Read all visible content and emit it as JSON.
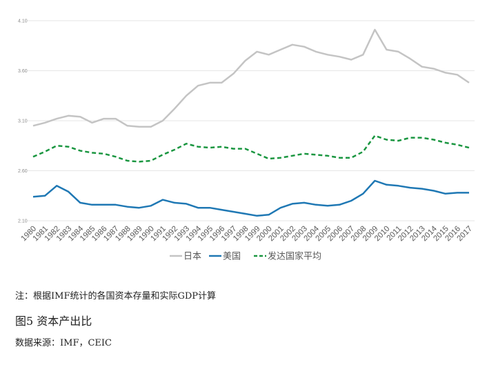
{
  "chart_data": {
    "type": "line",
    "title": "",
    "xlabel": "",
    "ylabel": "",
    "ylim": [
      2.1,
      4.1
    ],
    "y_ticks": [
      "2.10",
      "2.60",
      "3.10",
      "3.60",
      "4.10"
    ],
    "grid": "horizontal",
    "legend_position": "bottom",
    "x": [
      "1980",
      "1981",
      "1982",
      "1983",
      "1984",
      "1985",
      "1986",
      "1987",
      "1988",
      "1989",
      "1990",
      "1991",
      "1992",
      "1993",
      "1994",
      "1995",
      "1996",
      "1997",
      "1998",
      "1999",
      "2000",
      "2001",
      "2002",
      "2003",
      "2004",
      "2005",
      "2006",
      "2007",
      "2008",
      "2009",
      "2010",
      "2011",
      "2012",
      "2013",
      "2014",
      "2015",
      "2016",
      "2017"
    ],
    "series": [
      {
        "name": "日本",
        "color": "#c4c4c4",
        "dash": "solid",
        "values": [
          3.05,
          3.08,
          3.12,
          3.15,
          3.14,
          3.08,
          3.12,
          3.12,
          3.05,
          3.04,
          3.04,
          3.1,
          3.22,
          3.35,
          3.45,
          3.48,
          3.48,
          3.57,
          3.7,
          3.79,
          3.76,
          3.81,
          3.86,
          3.84,
          3.79,
          3.76,
          3.74,
          3.71,
          3.76,
          4.01,
          3.81,
          3.79,
          3.72,
          3.64,
          3.62,
          3.58,
          3.56,
          3.48
        ]
      },
      {
        "name": "美国",
        "color": "#1f78b4",
        "dash": "solid",
        "values": [
          2.34,
          2.35,
          2.45,
          2.39,
          2.28,
          2.26,
          2.26,
          2.26,
          2.24,
          2.23,
          2.25,
          2.31,
          2.28,
          2.27,
          2.23,
          2.23,
          2.21,
          2.19,
          2.17,
          2.15,
          2.16,
          2.23,
          2.27,
          2.28,
          2.26,
          2.25,
          2.26,
          2.3,
          2.37,
          2.5,
          2.46,
          2.45,
          2.43,
          2.42,
          2.4,
          2.37,
          2.38,
          2.38
        ]
      },
      {
        "name": "发达国家平均",
        "color": "#1a9640",
        "dash": "dashed",
        "values": [
          2.74,
          2.79,
          2.85,
          2.84,
          2.8,
          2.78,
          2.77,
          2.74,
          2.7,
          2.69,
          2.7,
          2.76,
          2.81,
          2.87,
          2.84,
          2.83,
          2.84,
          2.82,
          2.82,
          2.77,
          2.72,
          2.73,
          2.75,
          2.77,
          2.76,
          2.75,
          2.73,
          2.73,
          2.79,
          2.95,
          2.91,
          2.9,
          2.93,
          2.93,
          2.91,
          2.88,
          2.86,
          2.83
        ]
      }
    ]
  },
  "notes": {
    "source_note": "注：根据IMF统计的各国资本存量和实际GDP计算",
    "figure_title": "图5 资本产出比",
    "data_source": "数据来源：IMF，CEIC"
  }
}
